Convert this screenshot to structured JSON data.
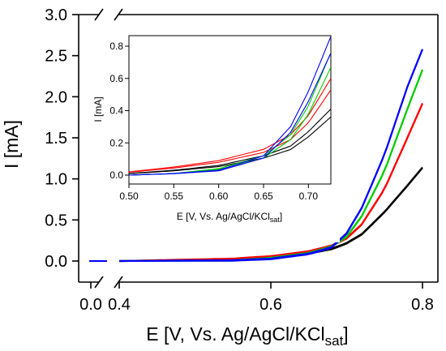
{
  "chart_data": [
    {
      "id": "main",
      "type": "line",
      "xlabel_main": "E [V, Vs. Ag/AgCl/KCl",
      "xlabel_sub": "sat",
      "xlabel_end": "]",
      "ylabel": "I [mA]",
      "xlim": [
        0.4,
        0.8
      ],
      "ylim": [
        -0.1,
        3.0
      ],
      "xticks": [
        {
          "v": 0.0,
          "label": "0.0"
        },
        {
          "v": 0.4,
          "label": "0.4"
        },
        {
          "v": 0.6,
          "label": "0.6"
        },
        {
          "v": 0.8,
          "label": "0.8"
        }
      ],
      "yticks": [
        {
          "v": 0.0,
          "label": "0.0"
        },
        {
          "v": 0.5,
          "label": "0.5"
        },
        {
          "v": 1.0,
          "label": "1.0"
        },
        {
          "v": 1.5,
          "label": "1.5"
        },
        {
          "v": 2.0,
          "label": "2.0"
        },
        {
          "v": 2.5,
          "label": "2.5"
        },
        {
          "v": 3.0,
          "label": "3.0"
        }
      ],
      "axis_break": "x between 0.0 and 0.4",
      "series": [
        {
          "color": "#000000",
          "x": [
            0.4,
            0.55,
            0.6,
            0.65,
            0.68,
            0.7,
            0.72,
            0.75,
            0.78,
            0.8
          ],
          "y": [
            0.0,
            0.02,
            0.05,
            0.1,
            0.15,
            0.22,
            0.33,
            0.6,
            0.92,
            1.14
          ]
        },
        {
          "color": "#ff0000",
          "x": [
            0.4,
            0.55,
            0.6,
            0.65,
            0.68,
            0.7,
            0.72,
            0.75,
            0.78,
            0.8
          ],
          "y": [
            0.0,
            0.03,
            0.06,
            0.12,
            0.19,
            0.28,
            0.45,
            0.88,
            1.5,
            1.92
          ]
        },
        {
          "color": "#00cc00",
          "x": [
            0.4,
            0.55,
            0.6,
            0.65,
            0.68,
            0.7,
            0.72,
            0.75,
            0.78,
            0.8
          ],
          "y": [
            0.0,
            0.01,
            0.04,
            0.1,
            0.18,
            0.3,
            0.55,
            1.1,
            1.85,
            2.33
          ]
        },
        {
          "color": "#0000ff",
          "x": [
            0.4,
            0.55,
            0.6,
            0.65,
            0.68,
            0.7,
            0.72,
            0.75,
            0.78,
            0.8
          ],
          "y": [
            0.0,
            0.01,
            0.03,
            0.09,
            0.17,
            0.34,
            0.65,
            1.3,
            2.12,
            2.58
          ]
        }
      ]
    },
    {
      "id": "inset",
      "type": "line",
      "xlabel_main": "E [V, Vs. Ag/AgCl/KCl",
      "xlabel_sub": "sat",
      "xlabel_end": "]",
      "ylabel": "I [mA]",
      "xlim": [
        0.5,
        0.725
      ],
      "ylim": [
        -0.02,
        0.84
      ],
      "xticks": [
        {
          "v": 0.5,
          "label": "0.50"
        },
        {
          "v": 0.55,
          "label": "0.55"
        },
        {
          "v": 0.6,
          "label": "0.60"
        },
        {
          "v": 0.65,
          "label": "0.65"
        },
        {
          "v": 0.7,
          "label": "0.70"
        }
      ],
      "yticks": [
        {
          "v": 0.0,
          "label": "0.0"
        },
        {
          "v": 0.2,
          "label": "0.2"
        },
        {
          "v": 0.4,
          "label": "0.4"
        },
        {
          "v": 0.6,
          "label": "0.6"
        },
        {
          "v": 0.8,
          "label": "0.8"
        }
      ],
      "series": [
        {
          "color": "#000000",
          "x": [
            0.5,
            0.55,
            0.6,
            0.65,
            0.68,
            0.7,
            0.725
          ],
          "y": [
            0.01,
            0.03,
            0.06,
            0.12,
            0.18,
            0.27,
            0.41
          ]
        },
        {
          "color": "#ff0000",
          "x": [
            0.5,
            0.55,
            0.6,
            0.65,
            0.68,
            0.7,
            0.725
          ],
          "y": [
            0.02,
            0.05,
            0.09,
            0.16,
            0.25,
            0.37,
            0.6
          ]
        },
        {
          "color": "#00cc00",
          "x": [
            0.5,
            0.55,
            0.6,
            0.65,
            0.68,
            0.7,
            0.725
          ],
          "y": [
            0.0,
            0.01,
            0.04,
            0.12,
            0.25,
            0.43,
            0.76
          ]
        },
        {
          "color": "#0000ff",
          "x": [
            0.5,
            0.55,
            0.6,
            0.65,
            0.68,
            0.7,
            0.725
          ],
          "y": [
            0.0,
            0.01,
            0.03,
            0.12,
            0.3,
            0.52,
            0.86
          ]
        }
      ]
    }
  ]
}
